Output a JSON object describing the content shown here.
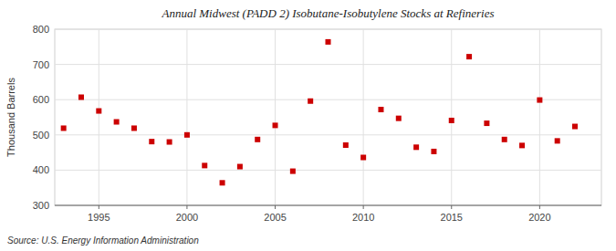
{
  "chart_data": {
    "type": "scatter",
    "title": "Annual Midwest (PADD 2) Isobutane-Isobutylene Stocks at Refineries",
    "ylabel": "Thousand Barrels",
    "source": "Source: U.S. Energy Information Administration",
    "color": "#cc0000",
    "marker": "square",
    "grid": true,
    "xlim": [
      1992.5,
      2023.5
    ],
    "ylim": [
      300,
      800
    ],
    "xticks": [
      1995,
      2000,
      2005,
      2010,
      2015,
      2020
    ],
    "yticks": [
      300,
      400,
      500,
      600,
      700,
      800
    ],
    "x": [
      1993,
      1994,
      1995,
      1996,
      1997,
      1998,
      1999,
      2000,
      2001,
      2002,
      2003,
      2004,
      2005,
      2006,
      2007,
      2008,
      2009,
      2010,
      2011,
      2012,
      2013,
      2014,
      2015,
      2016,
      2017,
      2018,
      2019,
      2020,
      2021,
      2022
    ],
    "values": [
      519,
      607,
      568,
      537,
      519,
      481,
      480,
      500,
      413,
      364,
      410,
      487,
      527,
      397,
      596,
      764,
      471,
      436,
      572,
      547,
      465,
      453,
      541,
      722,
      533,
      487,
      470,
      599,
      483,
      524
    ]
  }
}
